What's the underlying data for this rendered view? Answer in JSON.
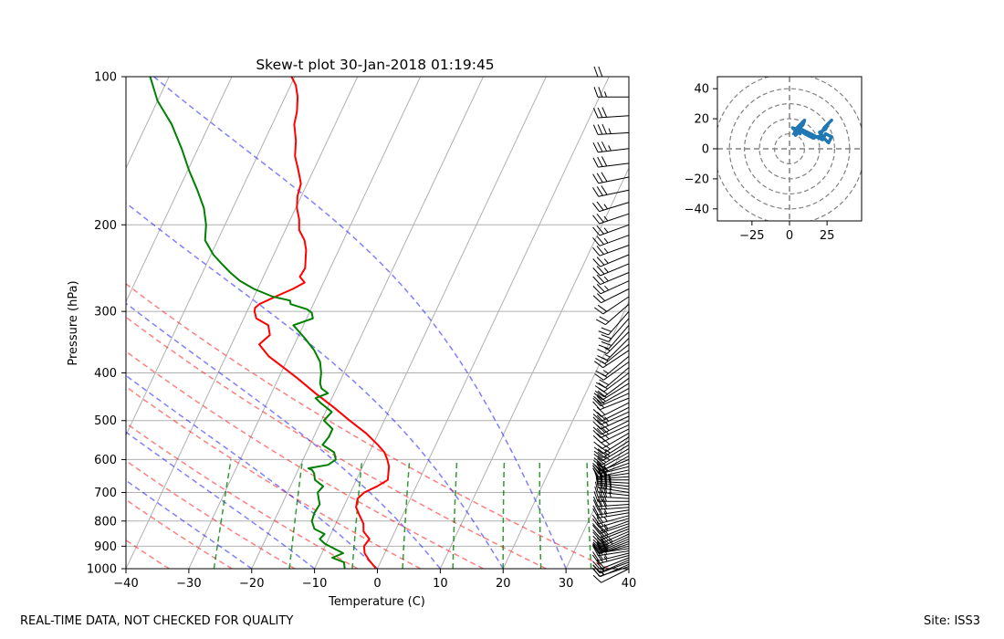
{
  "chart_data": [
    {
      "type": "line",
      "kind": "skew-t log-p sounding",
      "title": "Skew-t plot 30-Jan-2018 01:19:45",
      "xlabel": "Temperature (C)",
      "ylabel": "Pressure (hPa)",
      "xlim": [
        -40,
        40
      ],
      "ylim": [
        1000,
        100
      ],
      "skew_deg_per_ln_pressure": 16.0,
      "x_ticks": [
        -40,
        -30,
        -20,
        -10,
        0,
        10,
        20,
        30,
        40
      ],
      "x_tick_labels": [
        "−40",
        "−30",
        "−20",
        "−10",
        "0",
        "10",
        "20",
        "30",
        "40"
      ],
      "y_ticks": [
        1000,
        900,
        800,
        700,
        600,
        500,
        400,
        300,
        200,
        100
      ],
      "y_tick_labels": [
        "1000",
        "900",
        "800",
        "700",
        "600",
        "500",
        "400",
        "300",
        "200",
        "100"
      ],
      "reference_lines": {
        "isotherms_C": [
          -120,
          -110,
          -100,
          -90,
          -80,
          -70,
          -60,
          -50,
          -40,
          -30,
          -20,
          -10,
          0,
          10,
          20,
          30,
          40
        ],
        "dry_adiabats_theta_K": [
          220,
          230,
          240,
          250,
          260,
          270,
          280,
          290,
          300,
          310
        ],
        "moist_adiabats_T1000_C": [
          -20,
          -10,
          0,
          10,
          20,
          30
        ],
        "mixing_ratio_lines_T1000_C": [
          -26,
          -14,
          -4,
          4,
          12,
          20,
          26,
          34
        ],
        "mixing_ratio_top_hPa": 600
      },
      "series": [
        {
          "name": "Temperature",
          "color": "#ff0000",
          "pressure": [
            1000,
            960,
            930,
            900,
            870,
            840,
            810,
            780,
            750,
            720,
            700,
            680,
            660,
            640,
            620,
            600,
            580,
            560,
            530,
            500,
            470,
            440,
            410,
            390,
            370,
            350,
            335,
            320,
            310,
            300,
            295,
            290,
            280,
            270,
            262,
            255,
            245,
            235,
            225,
            215,
            205,
            195,
            185,
            175,
            165,
            155,
            145,
            135,
            125,
            118,
            110,
            104,
            100
          ],
          "temperature": [
            -0.2,
            -2.0,
            -3.2,
            -3.8,
            -3.5,
            -5.0,
            -5.6,
            -6.8,
            -8.0,
            -8.4,
            -7.8,
            -6.2,
            -5.0,
            -5.4,
            -5.8,
            -6.6,
            -7.6,
            -9.2,
            -12.0,
            -15.5,
            -19.0,
            -23.0,
            -27.0,
            -30.0,
            -33.2,
            -35.6,
            -34.6,
            -35.6,
            -38.0,
            -38.8,
            -39.0,
            -38.6,
            -36.6,
            -34.4,
            -33.0,
            -34.2,
            -34.0,
            -34.6,
            -35.2,
            -36.2,
            -37.8,
            -38.6,
            -39.8,
            -40.6,
            -41.0,
            -42.4,
            -44.0,
            -45.0,
            -46.5,
            -47.0,
            -48.0,
            -49.2,
            -50.5
          ]
        },
        {
          "name": "Dew point",
          "color": "#008000",
          "pressure": [
            1000,
            970,
            950,
            930,
            910,
            890,
            870,
            850,
            830,
            800,
            770,
            740,
            720,
            700,
            680,
            660,
            640,
            630,
            625,
            615,
            600,
            580,
            560,
            540,
            520,
            500,
            480,
            460,
            450,
            440,
            430,
            420,
            400,
            380,
            360,
            340,
            320,
            310,
            302,
            297,
            290,
            285,
            280,
            270,
            260,
            250,
            240,
            230,
            215,
            200,
            185,
            170,
            155,
            140,
            125,
            112,
            100
          ],
          "temperature": [
            -5.2,
            -5.8,
            -8.0,
            -6.6,
            -8.4,
            -10.2,
            -11.4,
            -11.0,
            -13.0,
            -14.0,
            -14.2,
            -14.0,
            -14.6,
            -15.2,
            -14.8,
            -16.6,
            -17.2,
            -17.8,
            -18.5,
            -15.6,
            -14.8,
            -15.6,
            -18.0,
            -17.6,
            -17.6,
            -19.6,
            -19.0,
            -21.5,
            -22.6,
            -21.0,
            -22.4,
            -23.0,
            -23.6,
            -24.6,
            -26.4,
            -28.8,
            -31.6,
            -29.0,
            -29.6,
            -30.6,
            -33.6,
            -34.0,
            -37.0,
            -40.6,
            -43.4,
            -45.6,
            -47.6,
            -49.6,
            -52.0,
            -53.0,
            -54.6,
            -57.0,
            -59.8,
            -62.6,
            -66.0,
            -70.0,
            -73.0
          ]
        }
      ],
      "wind_barbs": {
        "pressure": [
          1000,
          990,
          980,
          970,
          960,
          950,
          940,
          930,
          920,
          910,
          900,
          890,
          880,
          870,
          860,
          850,
          840,
          830,
          820,
          810,
          800,
          790,
          780,
          770,
          760,
          750,
          740,
          730,
          720,
          710,
          700,
          690,
          680,
          670,
          660,
          650,
          640,
          630,
          620,
          610,
          600,
          590,
          580,
          570,
          560,
          550,
          540,
          530,
          520,
          510,
          500,
          490,
          480,
          470,
          460,
          450,
          440,
          430,
          420,
          410,
          400,
          390,
          380,
          370,
          360,
          350,
          340,
          330,
          320,
          310,
          300,
          290,
          280,
          270,
          260,
          250,
          240,
          230,
          220,
          210,
          200,
          190,
          180,
          170,
          160,
          150,
          140,
          130,
          120,
          110,
          100
        ],
        "u_kt": [
          8,
          12,
          14,
          16,
          18,
          20,
          22,
          24,
          26,
          28,
          25,
          24,
          26,
          28,
          30,
          30,
          28,
          26,
          25,
          24,
          22,
          20,
          22,
          24,
          26,
          28,
          30,
          32,
          34,
          36,
          38,
          40,
          38,
          36,
          34,
          30,
          28,
          26,
          24,
          22,
          20,
          18,
          18,
          20,
          20,
          22,
          22,
          24,
          24,
          26,
          24,
          22,
          22,
          20,
          20,
          20,
          18,
          18,
          16,
          16,
          16,
          14,
          14,
          12,
          12,
          10,
          10,
          12,
          12,
          14,
          14,
          16,
          18,
          20,
          22,
          24,
          24,
          24,
          22,
          22,
          22,
          24,
          26,
          28,
          30,
          32,
          34,
          34,
          30,
          26,
          22
        ],
        "v_kt": [
          4,
          4,
          6,
          6,
          8,
          8,
          6,
          6,
          4,
          4,
          6,
          8,
          10,
          12,
          14,
          14,
          12,
          10,
          10,
          8,
          8,
          6,
          6,
          4,
          4,
          2,
          2,
          0,
          -2,
          -4,
          -6,
          -6,
          -4,
          -2,
          0,
          2,
          4,
          6,
          6,
          8,
          8,
          10,
          10,
          12,
          12,
          14,
          14,
          14,
          12,
          12,
          12,
          10,
          10,
          10,
          10,
          8,
          8,
          10,
          10,
          12,
          12,
          12,
          10,
          10,
          8,
          8,
          10,
          12,
          14,
          16,
          16,
          14,
          12,
          10,
          10,
          10,
          10,
          10,
          8,
          8,
          8,
          8,
          8,
          6,
          6,
          4,
          4,
          2,
          2,
          0,
          0
        ]
      }
    },
    {
      "type": "line",
      "kind": "hodograph",
      "title": "",
      "xlim": [
        -48,
        48
      ],
      "ylim": [
        -48,
        48
      ],
      "x_ticks": [
        -25,
        0,
        25
      ],
      "x_tick_labels": [
        "−25",
        "0",
        "25"
      ],
      "y_ticks": [
        40,
        20,
        0,
        -20,
        -40
      ],
      "y_tick_labels": [
        "40",
        "20",
        "0",
        "−20",
        "−40"
      ],
      "rings": [
        10,
        20,
        30,
        40,
        50
      ],
      "color": "#1f77b4",
      "u": [
        3,
        4,
        2,
        5,
        6,
        7,
        8,
        9,
        10,
        12,
        14,
        16,
        18,
        20,
        21,
        20,
        22,
        24,
        25,
        26,
        28,
        27,
        25,
        23,
        22,
        21,
        22,
        24,
        25,
        26,
        27,
        28,
        26,
        24,
        23,
        22,
        20,
        18,
        16,
        14,
        12,
        10,
        8,
        6,
        5,
        4,
        5,
        7,
        8,
        9,
        10,
        9,
        7,
        6,
        5,
        4
      ],
      "v": [
        10,
        12,
        14,
        13,
        11,
        10,
        12,
        11,
        10,
        9,
        8,
        7,
        8,
        8,
        9,
        11,
        12,
        13,
        15,
        17,
        19,
        18,
        16,
        14,
        12,
        10,
        8,
        6,
        5,
        4,
        6,
        8,
        9,
        10,
        8,
        6,
        7,
        8,
        9,
        10,
        11,
        12,
        13,
        12,
        10,
        9,
        14,
        16,
        17,
        18,
        19,
        16,
        14,
        13,
        12,
        11
      ]
    }
  ],
  "footer": {
    "left": "REAL-TIME DATA, NOT CHECKED FOR QUALITY",
    "right": "Site: ISS3"
  }
}
